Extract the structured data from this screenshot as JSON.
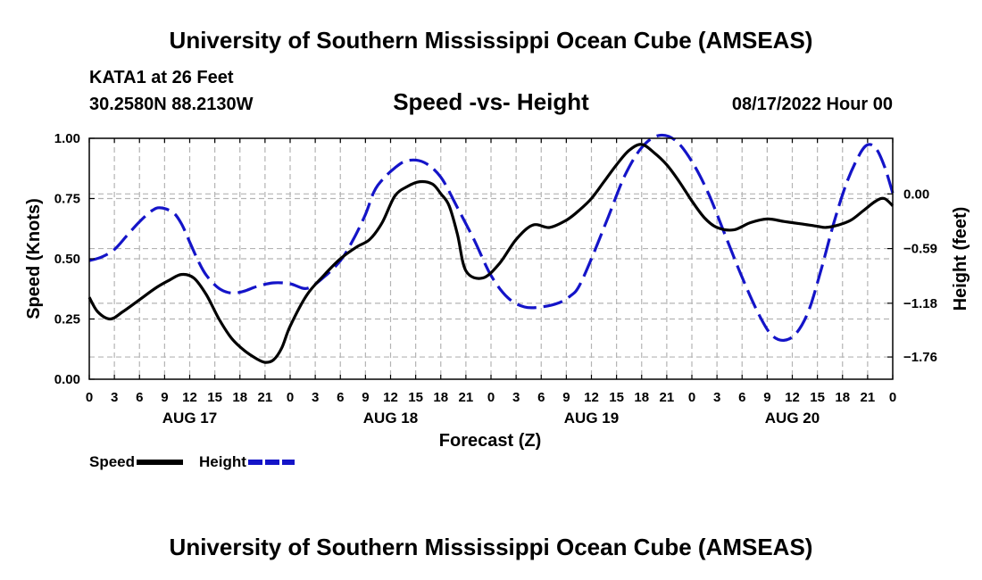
{
  "header": {
    "title": "University of Southern Mississippi Ocean Cube (AMSEAS)",
    "station": "KATA1 at 26 Feet",
    "coordinates": "30.2580N  88.2130W",
    "subtitle": "Speed -vs- Height",
    "date": "08/17/2022 Hour 00"
  },
  "footer": {
    "title": "University of Southern Mississippi Ocean Cube (AMSEAS)"
  },
  "legend": {
    "speed_label": "Speed",
    "height_label": "Height"
  },
  "colors": {
    "speed": "#000000",
    "height": "#1414c8",
    "grid": "#b4b4b4"
  },
  "chart_data": {
    "type": "line",
    "xlabel": "Forecast (Z)",
    "ylabel": "Speed (Knots)",
    "y2label": "Height (feet)",
    "xlim": [
      0,
      96
    ],
    "ylim": [
      0,
      1
    ],
    "y2lim": [
      -2.0,
      0.6
    ],
    "x_ticks": [
      0,
      3,
      6,
      9,
      12,
      15,
      18,
      21,
      24,
      27,
      30,
      33,
      36,
      39,
      42,
      45,
      48,
      51,
      54,
      57,
      60,
      63,
      66,
      69,
      72,
      75,
      78,
      81,
      84,
      87,
      90,
      93,
      96
    ],
    "x_tick_labels": [
      "0",
      "3",
      "6",
      "9",
      "12",
      "15",
      "18",
      "21",
      "0",
      "3",
      "6",
      "9",
      "12",
      "15",
      "18",
      "21",
      "0",
      "3",
      "6",
      "9",
      "12",
      "15",
      "18",
      "21",
      "0",
      "3",
      "6",
      "9",
      "12",
      "15",
      "18",
      "21",
      "0"
    ],
    "day_labels": [
      {
        "x": 12,
        "label": "AUG 17"
      },
      {
        "x": 36,
        "label": "AUG 18"
      },
      {
        "x": 60,
        "label": "AUG 19"
      },
      {
        "x": 84,
        "label": "AUG 20"
      }
    ],
    "y_ticks": [
      0,
      0.25,
      0.5,
      0.75,
      1.0
    ],
    "y_tick_labels": [
      "0.00",
      "0.25",
      "0.50",
      "0.75",
      "1.00"
    ],
    "y2_ticks": [
      0.0,
      -0.59,
      -1.18,
      -1.76
    ],
    "y2_tick_labels": [
      "0.00",
      "−0.59",
      "−1.18",
      "−1.76"
    ],
    "series": [
      {
        "name": "Speed",
        "axis": "left",
        "style": "solid",
        "x": [
          0,
          1,
          2.5,
          4,
          6,
          8,
          9.5,
          11,
          12.5,
          14,
          15.5,
          17,
          18.5,
          20,
          21,
          22,
          23,
          24,
          26,
          28,
          30,
          32,
          33.5,
          35,
          36.5,
          38,
          39.5,
          41,
          42,
          43,
          44,
          45,
          47,
          49,
          51,
          53,
          55,
          57,
          58.5,
          60,
          61.5,
          63,
          64.5,
          66,
          67.5,
          69,
          70.5,
          72,
          73.5,
          75,
          77,
          79,
          81,
          83,
          85,
          86,
          87,
          88,
          89.5,
          91,
          92.5,
          94,
          95,
          96
        ],
        "y": [
          0.34,
          0.28,
          0.25,
          0.28,
          0.33,
          0.38,
          0.41,
          0.435,
          0.42,
          0.35,
          0.25,
          0.17,
          0.12,
          0.085,
          0.07,
          0.08,
          0.13,
          0.22,
          0.35,
          0.43,
          0.5,
          0.55,
          0.58,
          0.65,
          0.76,
          0.8,
          0.82,
          0.81,
          0.77,
          0.72,
          0.6,
          0.45,
          0.42,
          0.48,
          0.58,
          0.64,
          0.63,
          0.66,
          0.7,
          0.75,
          0.82,
          0.89,
          0.95,
          0.975,
          0.94,
          0.89,
          0.82,
          0.74,
          0.67,
          0.63,
          0.62,
          0.65,
          0.665,
          0.655,
          0.645,
          0.64,
          0.635,
          0.63,
          0.64,
          0.66,
          0.7,
          0.74,
          0.75,
          0.72
        ]
      },
      {
        "name": "Height",
        "axis": "right",
        "style": "dashed",
        "x": [
          0,
          1.5,
          3,
          4.5,
          6,
          7.5,
          8.5,
          10,
          11,
          12,
          13,
          14,
          15.5,
          17,
          18.5,
          20,
          22,
          24,
          26,
          28,
          30,
          31.5,
          33,
          34,
          35,
          36.5,
          38,
          40,
          42,
          44,
          46,
          48,
          50,
          52,
          54,
          56,
          57.5,
          58.5,
          60,
          62,
          64,
          66,
          68,
          70,
          72,
          74,
          76,
          78,
          80,
          81.5,
          83,
          84.5,
          86,
          87.5,
          89,
          90.5,
          92,
          93,
          94,
          95,
          96
        ],
        "y": [
          -0.72,
          -0.68,
          -0.6,
          -0.45,
          -0.3,
          -0.18,
          -0.15,
          -0.2,
          -0.32,
          -0.52,
          -0.72,
          -0.88,
          -1.02,
          -1.07,
          -1.05,
          -1.0,
          -0.96,
          -0.97,
          -1.02,
          -0.9,
          -0.72,
          -0.5,
          -0.22,
          0.02,
          0.15,
          0.28,
          0.36,
          0.34,
          0.18,
          -0.15,
          -0.5,
          -0.88,
          -1.12,
          -1.22,
          -1.22,
          -1.18,
          -1.1,
          -1.0,
          -0.7,
          -0.25,
          0.2,
          0.5,
          0.63,
          0.58,
          0.35,
          0.0,
          -0.45,
          -0.9,
          -1.3,
          -1.52,
          -1.58,
          -1.5,
          -1.25,
          -0.8,
          -0.3,
          0.12,
          0.42,
          0.53,
          0.49,
          0.3,
          0.01
        ]
      }
    ]
  }
}
